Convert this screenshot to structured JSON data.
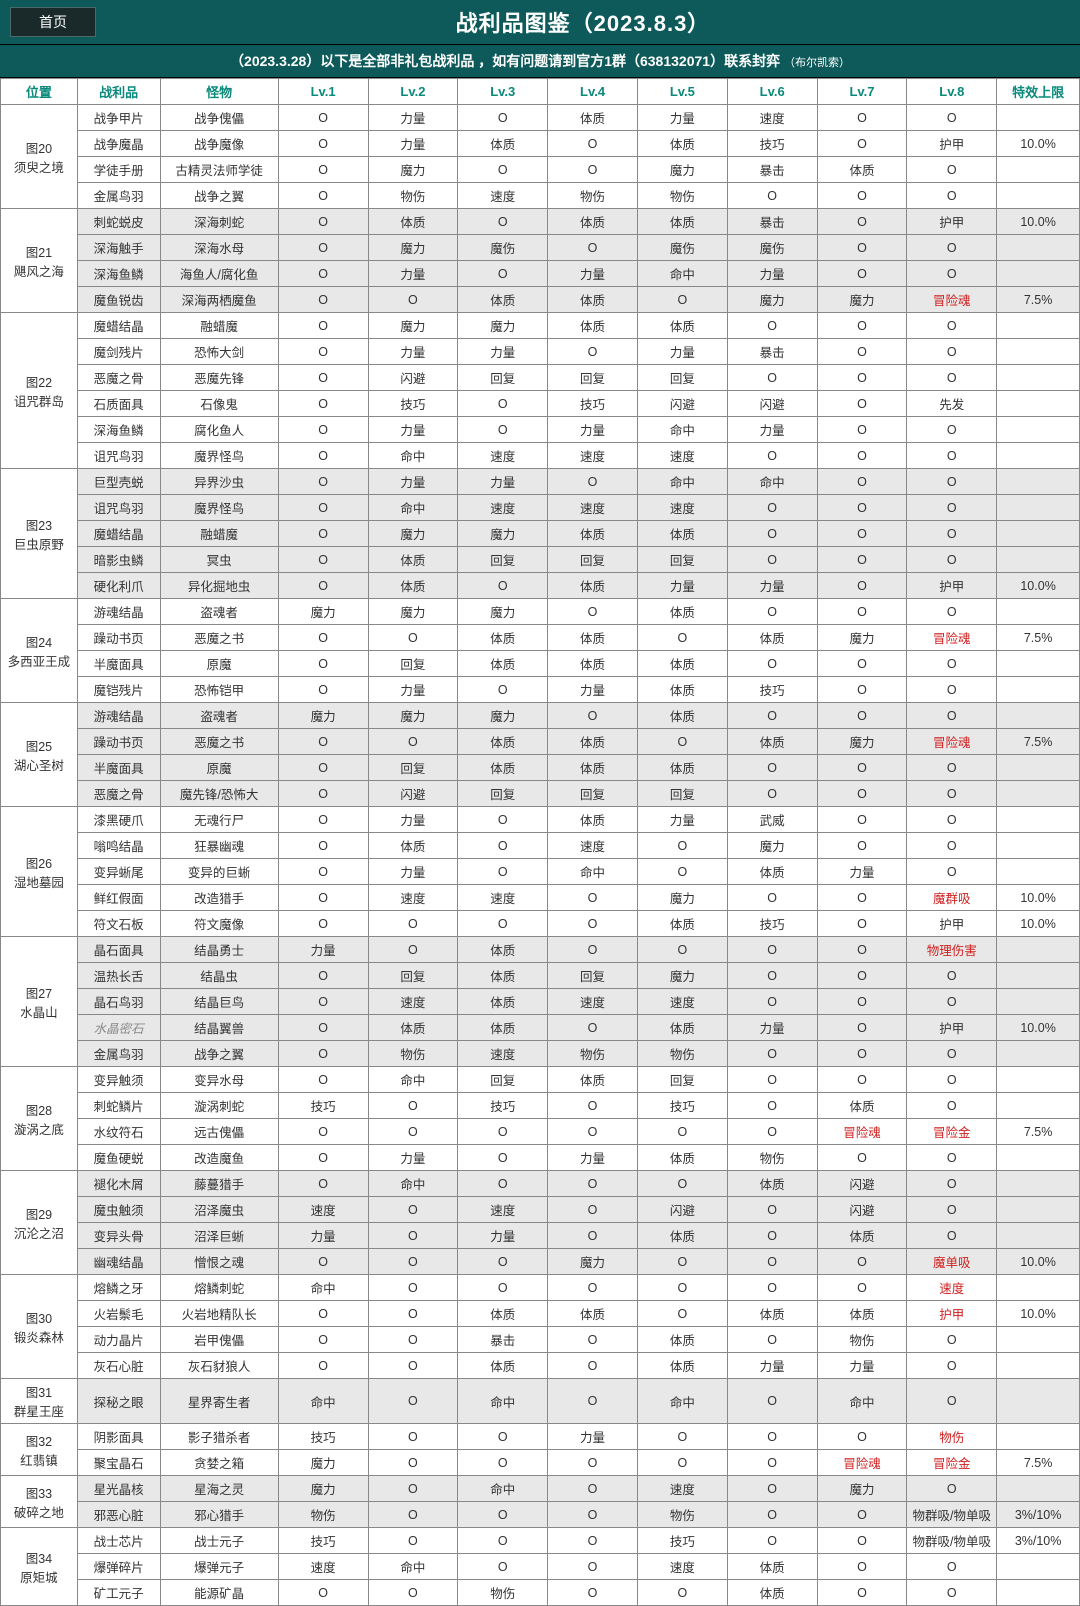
{
  "header": {
    "home": "首页",
    "title": "战利品图鉴（2023.8.3）"
  },
  "subheader": {
    "text": "（2023.3.28）以下是全部非礼包战利品 ，如有问题请到官方1群（638132071）联系封弈",
    "tail": "（布尔凯索）"
  },
  "columns": [
    "位置",
    "战利品",
    "怪物",
    "Lv.1",
    "Lv.2",
    "Lv.3",
    "Lv.4",
    "Lv.5",
    "Lv.6",
    "Lv.7",
    "Lv.8",
    "特效上限"
  ],
  "groups": [
    {
      "loc": "图20\n须臾之境",
      "shade": "odd",
      "rows": [
        [
          "战争甲片",
          "战争傀儡",
          "O",
          "力量",
          "O",
          "体质",
          "力量",
          "速度",
          "O",
          "O",
          ""
        ],
        [
          "战争魔晶",
          "战争魔像",
          "O",
          "力量",
          "体质",
          "O",
          "体质",
          "技巧",
          "O",
          "护甲",
          "10.0%"
        ],
        [
          "学徒手册",
          "古精灵法师学徒",
          "O",
          "魔力",
          "O",
          "O",
          "魔力",
          "暴击",
          "体质",
          "O",
          ""
        ],
        [
          "金属鸟羽",
          "战争之翼",
          "O",
          "物伤",
          "速度",
          "物伤",
          "物伤",
          "O",
          "O",
          "O",
          ""
        ]
      ]
    },
    {
      "loc": "图21\n飓风之海",
      "shade": "even",
      "rows": [
        [
          "刺蛇蜕皮",
          "深海刺蛇",
          "O",
          "体质",
          "O",
          "体质",
          "体质",
          "暴击",
          "O",
          "护甲",
          "10.0%"
        ],
        [
          "深海触手",
          "深海水母",
          "O",
          "魔力",
          "魔伤",
          "O",
          "魔伤",
          "魔伤",
          "O",
          "O",
          ""
        ],
        [
          "深海鱼鳞",
          "海鱼人/腐化鱼",
          "O",
          "力量",
          "O",
          "力量",
          "命中",
          "力量",
          "O",
          "O",
          ""
        ],
        [
          "魔鱼锐齿",
          "深海两栖魔鱼",
          "O",
          "O",
          "体质",
          "体质",
          "O",
          "魔力",
          "魔力",
          {
            "t": "冒险魂",
            "c": "red"
          },
          "7.5%"
        ]
      ]
    },
    {
      "loc": "图22\n诅咒群岛",
      "shade": "odd",
      "rows": [
        [
          "魔蜡结晶",
          "融蜡魔",
          "O",
          "魔力",
          "魔力",
          "体质",
          "体质",
          "O",
          "O",
          "O",
          ""
        ],
        [
          "魔剑残片",
          "恐怖大剑",
          "O",
          "力量",
          "力量",
          "O",
          "力量",
          "暴击",
          "O",
          "O",
          ""
        ],
        [
          "恶魔之骨",
          "恶魔先锋",
          "O",
          "闪避",
          "回复",
          "回复",
          "回复",
          "O",
          "O",
          "O",
          ""
        ],
        [
          "石质面具",
          "石像鬼",
          "O",
          "技巧",
          "O",
          "技巧",
          "闪避",
          "闪避",
          "O",
          "先发",
          ""
        ],
        [
          "深海鱼鳞",
          "腐化鱼人",
          "O",
          "力量",
          "O",
          "力量",
          "命中",
          "力量",
          "O",
          "O",
          ""
        ],
        [
          "诅咒鸟羽",
          "魔界怪鸟",
          "O",
          "命中",
          "速度",
          "速度",
          "速度",
          "O",
          "O",
          "O",
          ""
        ]
      ]
    },
    {
      "loc": "图23\n巨虫原野",
      "shade": "even",
      "rows": [
        [
          "巨型壳蜕",
          "异界沙虫",
          "O",
          "力量",
          "力量",
          "O",
          "命中",
          "命中",
          "O",
          "O",
          ""
        ],
        [
          "诅咒鸟羽",
          "魔界怪鸟",
          "O",
          "命中",
          "速度",
          "速度",
          "速度",
          "O",
          "O",
          "O",
          ""
        ],
        [
          "魔蜡结晶",
          "融蜡魔",
          "O",
          "魔力",
          "魔力",
          "体质",
          "体质",
          "O",
          "O",
          "O",
          ""
        ],
        [
          "暗影虫鳞",
          "冥虫",
          "O",
          "体质",
          "回复",
          "回复",
          "回复",
          "O",
          "O",
          "O",
          ""
        ],
        [
          "硬化利爪",
          "异化掘地虫",
          "O",
          "体质",
          "O",
          "体质",
          "力量",
          "力量",
          "O",
          "护甲",
          "10.0%"
        ]
      ]
    },
    {
      "loc": "图24\n多西亚王成",
      "shade": "odd",
      "rows": [
        [
          "游魂结晶",
          "盗魂者",
          "魔力",
          "魔力",
          "魔力",
          "O",
          "体质",
          "O",
          "O",
          "O",
          ""
        ],
        [
          "躁动书页",
          "恶魔之书",
          "O",
          "O",
          "体质",
          "体质",
          "O",
          "体质",
          "魔力",
          {
            "t": "冒险魂",
            "c": "red"
          },
          "7.5%"
        ],
        [
          "半魔面具",
          "原魔",
          "O",
          "回复",
          "体质",
          "体质",
          "体质",
          "O",
          "O",
          "O",
          ""
        ],
        [
          "魔铠残片",
          "恐怖铠甲",
          "O",
          "力量",
          "O",
          "力量",
          "体质",
          "技巧",
          "O",
          "O",
          ""
        ]
      ]
    },
    {
      "loc": "图25\n湖心圣树",
      "shade": "even",
      "rows": [
        [
          "游魂结晶",
          "盗魂者",
          "魔力",
          "魔力",
          "魔力",
          "O",
          "体质",
          "O",
          "O",
          "O",
          ""
        ],
        [
          "躁动书页",
          "恶魔之书",
          "O",
          "O",
          "体质",
          "体质",
          "O",
          "体质",
          "魔力",
          {
            "t": "冒险魂",
            "c": "red"
          },
          "7.5%"
        ],
        [
          "半魔面具",
          "原魔",
          "O",
          "回复",
          "体质",
          "体质",
          "体质",
          "O",
          "O",
          "O",
          ""
        ],
        [
          "恶魔之骨",
          "魔先锋/恐怖大",
          "O",
          "闪避",
          "回复",
          "回复",
          "回复",
          "O",
          "O",
          "O",
          ""
        ]
      ]
    },
    {
      "loc": "图26\n湿地墓园",
      "shade": "odd",
      "rows": [
        [
          "漆黑硬爪",
          "无魂行尸",
          "O",
          "力量",
          "O",
          "体质",
          "力量",
          "武威",
          "O",
          "O",
          ""
        ],
        [
          "嗡鸣结晶",
          "狂暴幽魂",
          "O",
          "体质",
          "O",
          "速度",
          "O",
          "魔力",
          "O",
          "O",
          ""
        ],
        [
          "变异蜥尾",
          "变异的巨蜥",
          "O",
          "力量",
          "O",
          "命中",
          "O",
          "体质",
          "力量",
          "O",
          ""
        ],
        [
          "鲜红假面",
          "改造猎手",
          "O",
          "速度",
          "速度",
          "O",
          "魔力",
          "O",
          "O",
          {
            "t": "魔群吸",
            "c": "red"
          },
          "10.0%"
        ],
        [
          "符文石板",
          "符文魔像",
          "O",
          "O",
          "O",
          "O",
          "体质",
          "技巧",
          "O",
          "护甲",
          "10.0%"
        ]
      ]
    },
    {
      "loc": "图27\n水晶山",
      "shade": "even",
      "rows": [
        [
          "晶石面具",
          "结晶勇士",
          "力量",
          "O",
          "体质",
          "O",
          "O",
          "O",
          "O",
          {
            "t": "物理伤害",
            "c": "red"
          },
          ""
        ],
        [
          "温热长舌",
          "结晶虫",
          "O",
          "回复",
          "体质",
          "回复",
          "魔力",
          "O",
          "O",
          "O",
          ""
        ],
        [
          "晶石鸟羽",
          "结晶巨鸟",
          "O",
          "速度",
          "体质",
          "速度",
          "速度",
          "O",
          "O",
          "O",
          ""
        ],
        [
          {
            "t": "水晶密石",
            "c": "gray-italic"
          },
          "结晶翼兽",
          "O",
          "体质",
          "体质",
          "O",
          "体质",
          "力量",
          "O",
          "护甲",
          "10.0%"
        ],
        [
          "金属鸟羽",
          "战争之翼",
          "O",
          "物伤",
          "速度",
          "物伤",
          "物伤",
          "O",
          "O",
          "O",
          ""
        ]
      ]
    },
    {
      "loc": "图28\n漩涡之底",
      "shade": "odd",
      "rows": [
        [
          "变异触须",
          "变异水母",
          "O",
          "命中",
          "回复",
          "体质",
          "回复",
          "O",
          "O",
          "O",
          ""
        ],
        [
          "刺蛇鳞片",
          "漩涡刺蛇",
          "技巧",
          "O",
          "技巧",
          "O",
          "技巧",
          "O",
          "体质",
          "O",
          ""
        ],
        [
          "水纹符石",
          "远古傀儡",
          "O",
          "O",
          "O",
          "O",
          "O",
          "O",
          {
            "t": "冒险魂",
            "c": "red"
          },
          {
            "t": "冒险金",
            "c": "red"
          },
          "7.5%"
        ],
        [
          "魔鱼硬蜕",
          "改造魔鱼",
          "O",
          "力量",
          "O",
          "力量",
          "体质",
          "物伤",
          "O",
          "O",
          ""
        ]
      ]
    },
    {
      "loc": "图29\n沉沦之沼",
      "shade": "even",
      "rows": [
        [
          "褪化木屑",
          "藤蔓猎手",
          "O",
          "命中",
          "O",
          "O",
          "O",
          "体质",
          "闪避",
          "O",
          ""
        ],
        [
          "魔虫触须",
          "沼泽魔虫",
          "速度",
          "O",
          "速度",
          "O",
          "闪避",
          "O",
          "闪避",
          "O",
          ""
        ],
        [
          "变异头骨",
          "沼泽巨蜥",
          "力量",
          "O",
          "力量",
          "O",
          "体质",
          "O",
          "体质",
          "O",
          ""
        ],
        [
          "幽魂结晶",
          "憎恨之魂",
          "O",
          "O",
          "O",
          "魔力",
          "O",
          "O",
          "O",
          {
            "t": "魔单吸",
            "c": "red"
          },
          "10.0%"
        ]
      ]
    },
    {
      "loc": "图30\n锻炎森林",
      "shade": "odd",
      "rows": [
        [
          "熔鳞之牙",
          "熔鳞刺蛇",
          "命中",
          "O",
          "O",
          "O",
          "O",
          "O",
          "O",
          {
            "t": "速度",
            "c": "red"
          },
          ""
        ],
        [
          "火岩鬃毛",
          "火岩地精队长",
          "O",
          "O",
          "体质",
          "体质",
          "O",
          "体质",
          "体质",
          {
            "t": "护甲",
            "c": "red"
          },
          "10.0%"
        ],
        [
          "动力晶片",
          "岩甲傀儡",
          "O",
          "O",
          "暴击",
          "O",
          "体质",
          "O",
          "物伤",
          "O",
          ""
        ],
        [
          "灰石心脏",
          "灰石豺狼人",
          "O",
          "O",
          "体质",
          "O",
          "体质",
          "力量",
          "力量",
          "O",
          ""
        ]
      ]
    },
    {
      "loc": "图31\n群星王座",
      "shade": "even",
      "rows": [
        [
          "探秘之眼",
          "星界寄生者",
          "命中",
          "O",
          "命中",
          "O",
          "命中",
          "O",
          "命中",
          "O",
          ""
        ]
      ]
    },
    {
      "loc": "图32\n红翡镇",
      "shade": "odd",
      "rows": [
        [
          "阴影面具",
          "影子猎杀者",
          "技巧",
          "O",
          "O",
          "力量",
          "O",
          "O",
          "O",
          {
            "t": "物伤",
            "c": "red"
          },
          ""
        ],
        [
          "聚宝晶石",
          "贪婪之箱",
          "魔力",
          "O",
          "O",
          "O",
          "O",
          "O",
          {
            "t": "冒险魂",
            "c": "red"
          },
          {
            "t": "冒险金",
            "c": "red"
          },
          "7.5%"
        ]
      ]
    },
    {
      "loc": "图33\n破碎之地",
      "shade": "even",
      "rows": [
        [
          "星光晶核",
          "星海之灵",
          "魔力",
          "O",
          "命中",
          "O",
          "速度",
          "O",
          "魔力",
          "O",
          ""
        ],
        [
          "邪恶心脏",
          "邪心猎手",
          "物伤",
          "O",
          "O",
          "O",
          "物伤",
          "O",
          "O",
          "物群吸/物单吸",
          "3%/10%"
        ]
      ]
    },
    {
      "loc": "图34\n原矩城",
      "shade": "odd",
      "rows": [
        [
          "战士芯片",
          "战士元子",
          "技巧",
          "O",
          "O",
          "O",
          "技巧",
          "O",
          "O",
          "物群吸/物单吸",
          "3%/10%"
        ],
        [
          "爆弹碎片",
          "爆弹元子",
          "速度",
          "命中",
          "O",
          "O",
          "速度",
          "体质",
          "O",
          "O",
          ""
        ],
        [
          "矿工元子",
          "能源矿晶",
          "O",
          "O",
          "物伤",
          "O",
          "O",
          "体质",
          "O",
          "O",
          ""
        ]
      ]
    }
  ]
}
